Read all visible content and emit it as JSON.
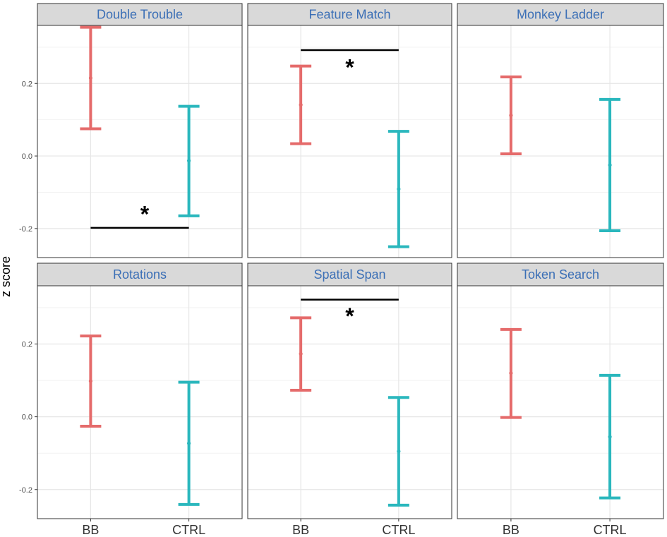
{
  "colors": {
    "bb": "#e56b6b",
    "ctrl": "#2ab7bd",
    "strip_bg": "#d9d9d9",
    "strip_text": "#3b6fb6",
    "grid_major": "#e6e6e6",
    "grid_minor": "#f2f2f2",
    "border": "#333333",
    "annotation": "#000000"
  },
  "chart_data": {
    "type": "errorbar",
    "ylabel": "z score",
    "categories": [
      "BB",
      "CTRL"
    ],
    "ylim": [
      -0.28,
      0.36
    ],
    "yticks": [
      -0.2,
      0.0,
      0.2
    ],
    "ytick_labels": [
      "-0.2",
      "0.0",
      "0.2"
    ],
    "significance_symbol": "*",
    "panels": [
      {
        "title": "Double Trouble",
        "series": [
          {
            "name": "BB",
            "mean": 0.215,
            "lower": 0.075,
            "upper": 0.355
          },
          {
            "name": "CTRL",
            "mean": -0.013,
            "lower": -0.165,
            "upper": 0.137
          }
        ],
        "significance": {
          "y": -0.198,
          "star_y": -0.155,
          "star_x_fraction": 0.55
        }
      },
      {
        "title": "Feature Match",
        "series": [
          {
            "name": "BB",
            "mean": 0.141,
            "lower": 0.034,
            "upper": 0.248
          },
          {
            "name": "CTRL",
            "mean": -0.091,
            "lower": -0.25,
            "upper": 0.068
          }
        ],
        "significance": {
          "y": 0.292,
          "star_y": 0.25,
          "star_x_fraction": 0.5
        }
      },
      {
        "title": "Monkey Ladder",
        "series": [
          {
            "name": "BB",
            "mean": 0.112,
            "lower": 0.006,
            "upper": 0.218
          },
          {
            "name": "CTRL",
            "mean": -0.025,
            "lower": -0.206,
            "upper": 0.156
          }
        ],
        "significance": null
      },
      {
        "title": "Rotations",
        "series": [
          {
            "name": "BB",
            "mean": 0.098,
            "lower": -0.026,
            "upper": 0.222
          },
          {
            "name": "CTRL",
            "mean": -0.073,
            "lower": -0.241,
            "upper": 0.095
          }
        ],
        "significance": null
      },
      {
        "title": "Spatial Span",
        "series": [
          {
            "name": "BB",
            "mean": 0.173,
            "lower": 0.073,
            "upper": 0.272
          },
          {
            "name": "CTRL",
            "mean": -0.095,
            "lower": -0.243,
            "upper": 0.053
          }
        ],
        "significance": {
          "y": 0.322,
          "star_y": 0.282,
          "star_x_fraction": 0.5
        }
      },
      {
        "title": "Token Search",
        "series": [
          {
            "name": "BB",
            "mean": 0.12,
            "lower": -0.002,
            "upper": 0.24
          },
          {
            "name": "CTRL",
            "mean": -0.055,
            "lower": -0.223,
            "upper": 0.114
          }
        ],
        "significance": null
      }
    ]
  }
}
